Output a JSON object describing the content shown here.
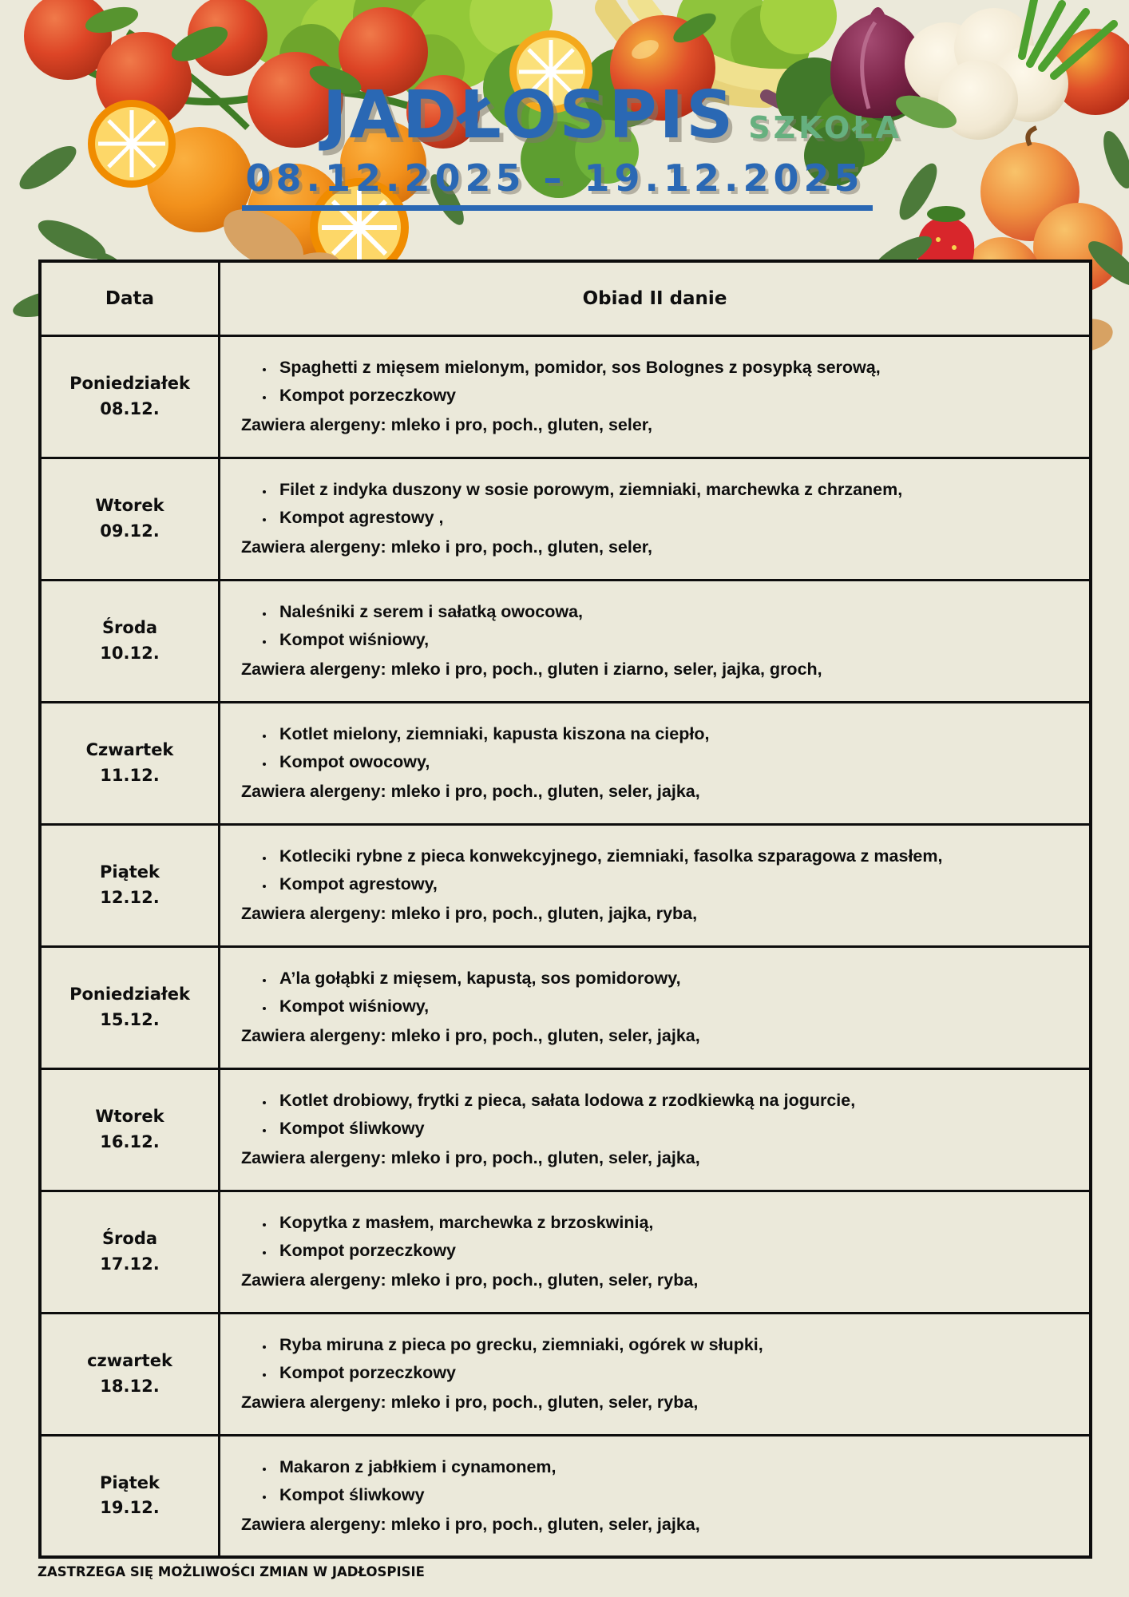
{
  "page": {
    "title": "JADŁOSPIS",
    "subtitle": "SZKOŁA",
    "date_range": "08.12.2025 – 19.12.2025",
    "footer": "ZASTRZEGA SIĘ MOŻLIWOŚCI ZMIAN W JADŁOSPISIE"
  },
  "colors": {
    "background": "#ebe9da",
    "title_blue": "#2a68b4",
    "subtitle_green": "#66b07f",
    "table_border": "#0d0d0d",
    "text": "#0e0e0e"
  },
  "decorations": [
    "tomatoes-illustration",
    "oranges-illustration",
    "orange-slice-illustration",
    "lemon-slice-illustration",
    "lettuce-illustration",
    "romanesco-illustration",
    "bananas-illustration",
    "ginger-root-illustration",
    "leaves-illustration",
    "apple-illustration",
    "red-onion-illustration",
    "cauliflower-illustration",
    "kale-illustration",
    "green-onions-illustration",
    "peaches-illustration",
    "strawberry-illustration"
  ],
  "table": {
    "headers": [
      "Data",
      "Obiad  II danie"
    ],
    "rows": [
      {
        "day": "Poniedziałek",
        "date": "08.12.",
        "items": [
          "Spaghetti z mięsem mielonym, pomidor, sos Bolognes z posypką serową,",
          "Kompot porzeczkowy"
        ],
        "allergens": "Zawiera alergeny: mleko i pro, poch., gluten, seler,"
      },
      {
        "day": "Wtorek",
        "date": "09.12.",
        "items": [
          "Filet z indyka duszony w sosie porowym, ziemniaki, marchewka z chrzanem,",
          "Kompot agrestowy ,"
        ],
        "allergens": "Zawiera alergeny: mleko i pro, poch., gluten, seler,"
      },
      {
        "day": "Środa",
        "date": "10.12.",
        "items": [
          "Naleśniki z serem i sałatką owocowa,",
          "Kompot wiśniowy,"
        ],
        "allergens": "Zawiera alergeny: mleko i pro, poch., gluten i ziarno, seler, jajka, groch,"
      },
      {
        "day": "Czwartek",
        "date": "11.12.",
        "items": [
          "Kotlet  mielony, ziemniaki, kapusta kiszona na ciepło,",
          "Kompot  owocowy,"
        ],
        "allergens": "Zawiera alergeny: mleko i pro, poch., gluten, seler, jajka,"
      },
      {
        "day": "Piątek",
        "date": "12.12.",
        "items": [
          "Kotleciki rybne z pieca konwekcyjnego, ziemniaki, fasolka szparagowa z masłem,",
          "Kompot agrestowy,"
        ],
        "allergens": "Zawiera alergeny: mleko i pro, poch., gluten, jajka, ryba,"
      },
      {
        "day": "Poniedziałek",
        "date": "15.12.",
        "items": [
          "A’la gołąbki z mięsem, kapustą, sos pomidorowy,",
          "Kompot wiśniowy,"
        ],
        "allergens": "Zawiera alergeny: mleko i pro, poch., gluten, seler,  jajka,"
      },
      {
        "day": "Wtorek",
        "date": "16.12.",
        "items": [
          "Kotlet drobiowy, frytki z pieca, sałata lodowa z rzodkiewką na jogurcie,",
          "Kompot śliwkowy"
        ],
        "allergens": "Zawiera alergeny: mleko i pro, poch., gluten, seler, jajka,"
      },
      {
        "day": "Środa",
        "date": "17.12.",
        "items": [
          "Kopytka z masłem, marchewka z brzoskwinią,",
          "Kompot  porzeczkowy"
        ],
        "allergens": "Zawiera alergeny: mleko i pro, poch., gluten, seler, ryba,"
      },
      {
        "day": "czwartek",
        "date": "18.12.",
        "items": [
          "Ryba miruna z pieca po grecku, ziemniaki, ogórek w słupki,",
          "Kompot  porzeczkowy"
        ],
        "allergens": "Zawiera alergeny: mleko i pro, poch., gluten, seler, ryba,"
      },
      {
        "day": "Piątek",
        "date": "19.12.",
        "items": [
          "Makaron z jabłkiem i cynamonem,",
          "Kompot śliwkowy"
        ],
        "allergens": "Zawiera alergeny: mleko i pro, poch., gluten, seler, jajka,"
      }
    ]
  }
}
